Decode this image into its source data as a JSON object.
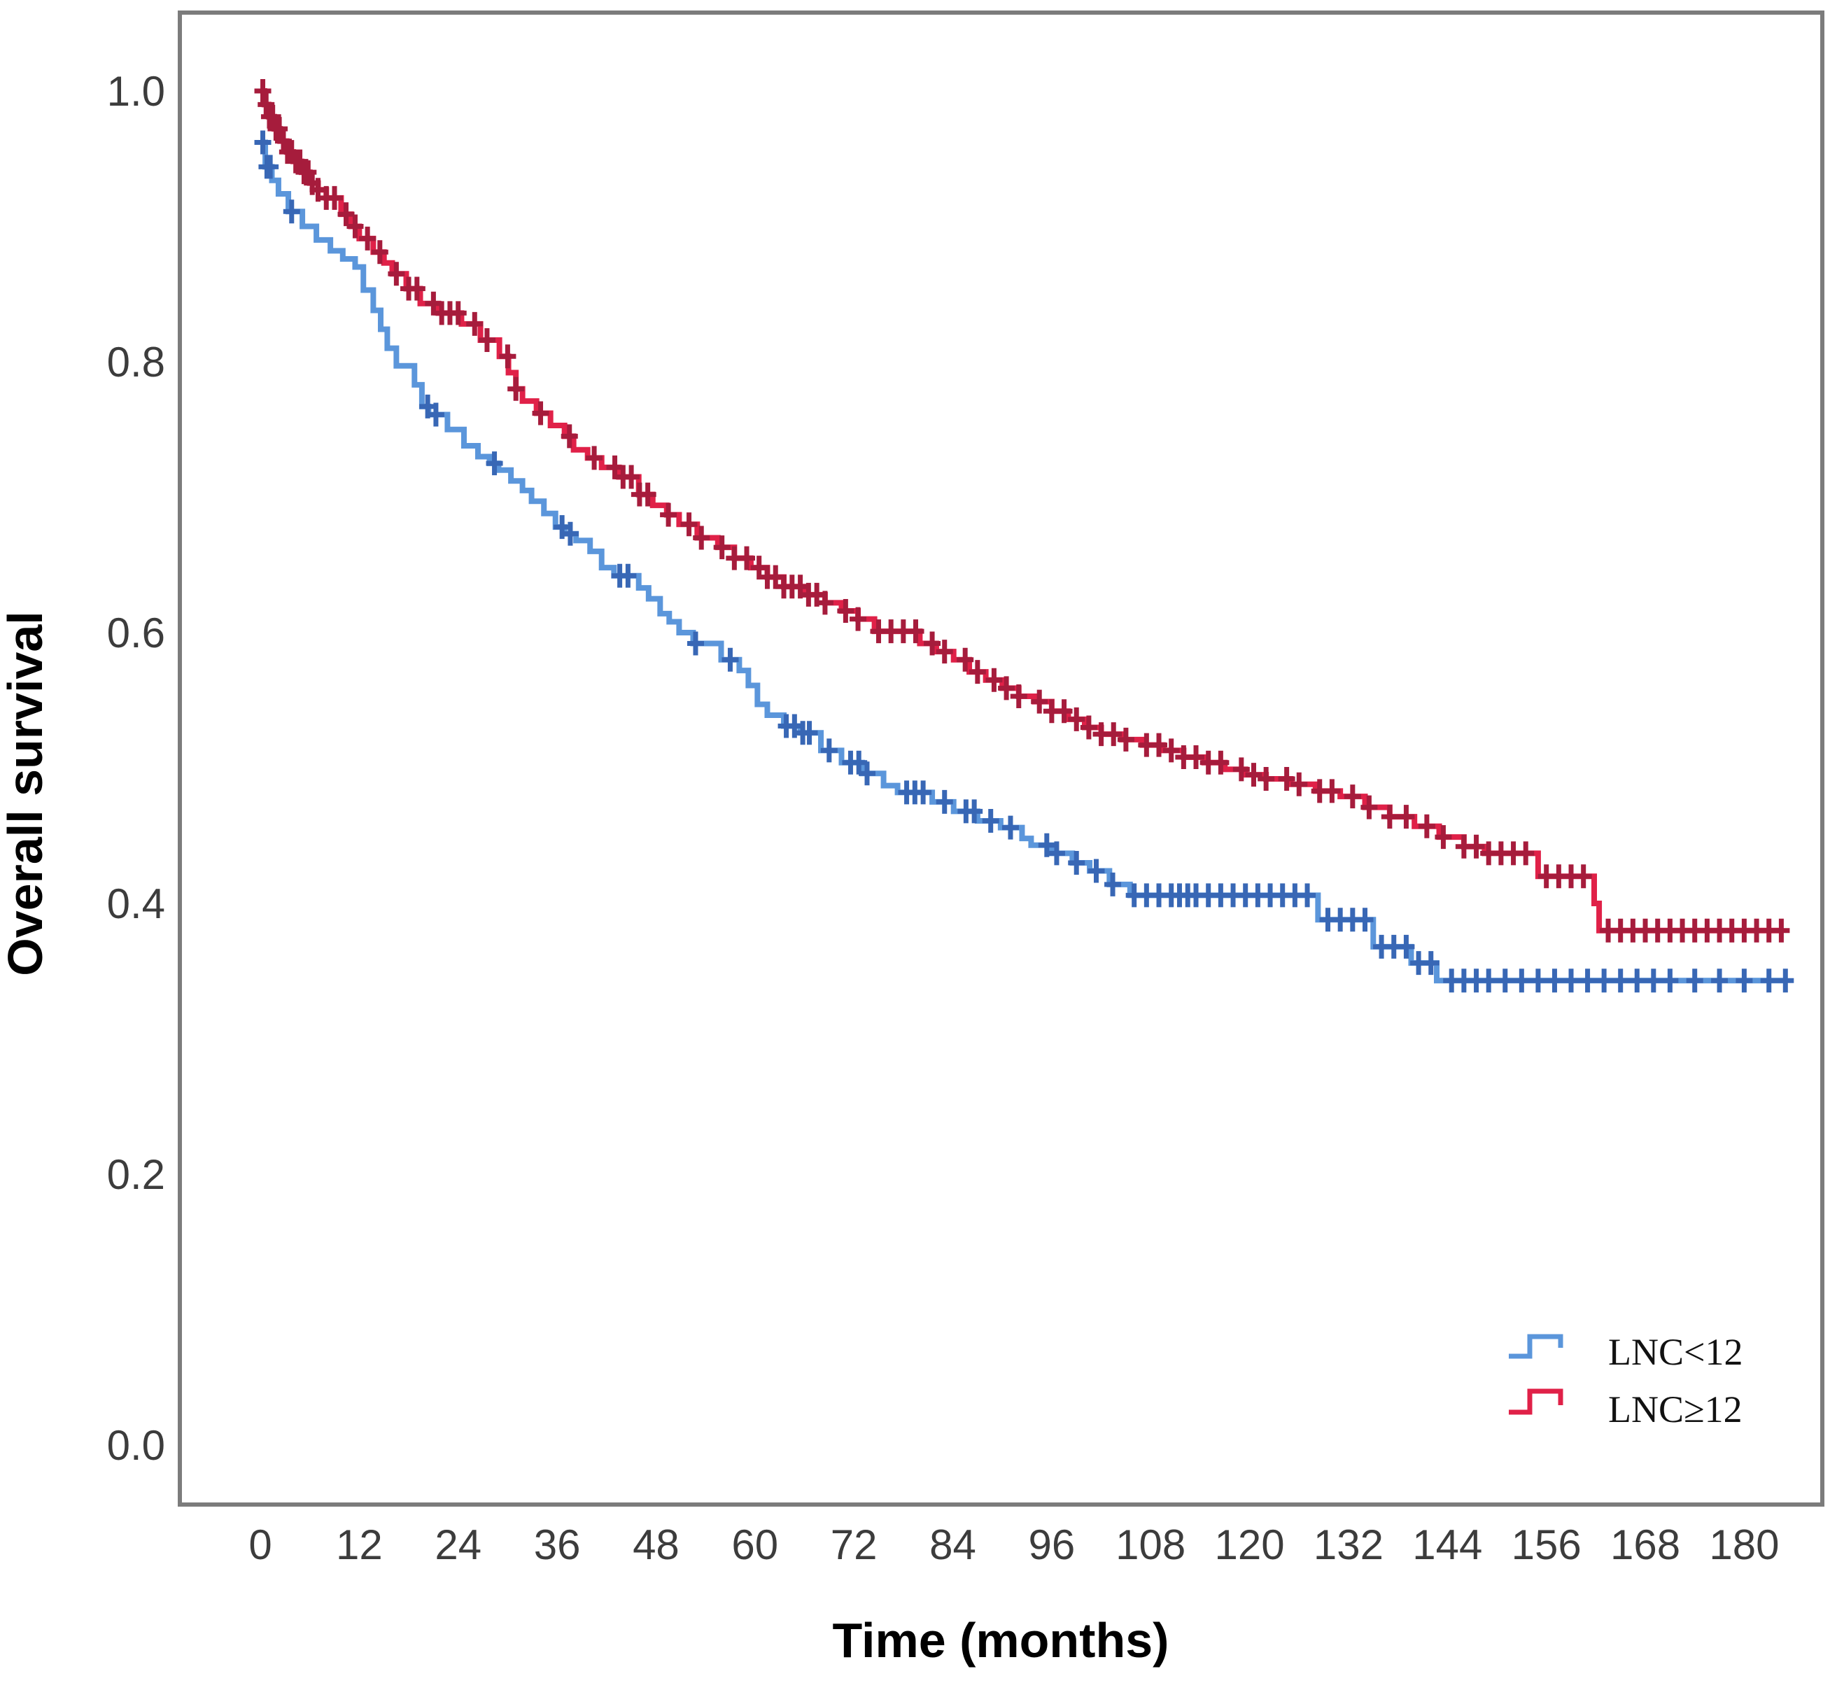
{
  "chart_data": {
    "type": "line",
    "subtype": "kaplan-meier-step",
    "title": "",
    "xlabel": "Time (months)",
    "ylabel": "Overall survival",
    "xlim": [
      0,
      190
    ],
    "ylim": [
      0.0,
      1.0
    ],
    "grid": "off",
    "legend_position": "lower-right",
    "x_ticks": [
      0,
      12,
      24,
      36,
      48,
      60,
      72,
      84,
      96,
      108,
      120,
      132,
      144,
      156,
      168,
      180
    ],
    "y_ticks": [
      {
        "label": "1.0",
        "value": 1.0
      },
      {
        "label": "0.8",
        "value": 0.8
      },
      {
        "label": "0.6",
        "value": 0.6
      },
      {
        "label": "0.4",
        "value": 0.4
      },
      {
        "label": "0.2",
        "value": 0.2
      },
      {
        "label": "0.0",
        "value": 0.0
      }
    ],
    "frame_color": "#7c7c7c",
    "series": [
      {
        "name": "LNC<12",
        "color": "#5b96db",
        "censor_color": "#3867b5",
        "end_time": 185.2,
        "steps": [
          [
            0,
            0.962
          ],
          [
            0.6,
            0.944
          ],
          [
            1.4,
            0.934
          ],
          [
            2.2,
            0.924
          ],
          [
            3.4,
            0.911
          ],
          [
            5.1,
            0.9
          ],
          [
            6.8,
            0.89
          ],
          [
            8.5,
            0.882
          ],
          [
            10,
            0.876
          ],
          [
            11.5,
            0.87
          ],
          [
            12.5,
            0.853
          ],
          [
            13.7,
            0.838
          ],
          [
            14.6,
            0.824
          ],
          [
            15.4,
            0.81
          ],
          [
            16.5,
            0.797
          ],
          [
            18.7,
            0.783
          ],
          [
            19.6,
            0.767
          ],
          [
            20.4,
            0.761
          ],
          [
            22.7,
            0.75
          ],
          [
            24.7,
            0.738
          ],
          [
            26.4,
            0.73
          ],
          [
            27.8,
            0.725
          ],
          [
            28.9,
            0.72
          ],
          [
            30.4,
            0.712
          ],
          [
            31.8,
            0.705
          ],
          [
            32.9,
            0.697
          ],
          [
            34.4,
            0.688
          ],
          [
            35.8,
            0.678
          ],
          [
            36.9,
            0.673
          ],
          [
            38.3,
            0.668
          ],
          [
            40,
            0.66
          ],
          [
            41.4,
            0.648
          ],
          [
            42.9,
            0.642
          ],
          [
            45.9,
            0.633
          ],
          [
            47.1,
            0.625
          ],
          [
            48.5,
            0.614
          ],
          [
            49.6,
            0.608
          ],
          [
            50.8,
            0.6
          ],
          [
            52.5,
            0.592
          ],
          [
            55.9,
            0.58
          ],
          [
            58.1,
            0.572
          ],
          [
            59.2,
            0.561
          ],
          [
            60.3,
            0.547
          ],
          [
            61.5,
            0.539
          ],
          [
            63.5,
            0.531
          ],
          [
            65.5,
            0.526
          ],
          [
            68,
            0.513
          ],
          [
            70.5,
            0.504
          ],
          [
            73,
            0.496
          ],
          [
            75.6,
            0.487
          ],
          [
            77.3,
            0.482
          ],
          [
            81.5,
            0.475
          ],
          [
            84.1,
            0.468
          ],
          [
            87,
            0.461
          ],
          [
            89.8,
            0.456
          ],
          [
            92.4,
            0.448
          ],
          [
            93.5,
            0.443
          ],
          [
            96,
            0.437
          ],
          [
            98.5,
            0.43
          ],
          [
            100.6,
            0.424
          ],
          [
            103,
            0.414
          ],
          [
            105.5,
            0.406
          ],
          [
            128.3,
            0.388
          ],
          [
            135,
            0.368
          ],
          [
            139.6,
            0.356
          ],
          [
            142.7,
            0.343
          ]
        ],
        "censors": [
          0.3,
          0.8,
          1.2,
          3.8,
          20.3,
          21.3,
          28.4,
          36.6,
          37.6,
          43.6,
          44.6,
          52.8,
          57,
          63.8,
          64.8,
          65.8,
          66.6,
          69,
          71.6,
          72.6,
          73.6,
          78.4,
          79.4,
          80.4,
          83,
          85.6,
          86.6,
          88.6,
          91,
          95.4,
          96.6,
          99,
          101.4,
          103.4,
          106,
          107.5,
          109,
          110.5,
          111.5,
          112.5,
          113.5,
          115,
          116.5,
          118,
          119.5,
          121,
          122.5,
          124,
          125.5,
          127,
          129.5,
          131,
          132.5,
          134,
          136,
          137.5,
          139,
          140.5,
          142,
          144.5,
          146,
          147.5,
          149,
          151,
          153,
          155,
          157,
          159,
          161,
          163,
          165,
          167,
          169,
          171,
          174,
          177,
          180,
          183,
          185
        ]
      },
      {
        "name": "LNC≥12",
        "color": "#e02148",
        "censor_color": "#a61c3c",
        "end_time": 184.6,
        "steps": [
          [
            0,
            1.0
          ],
          [
            0.5,
            0.99
          ],
          [
            1,
            0.981
          ],
          [
            1.7,
            0.972
          ],
          [
            2.4,
            0.963
          ],
          [
            3.2,
            0.955
          ],
          [
            4,
            0.948
          ],
          [
            5,
            0.94
          ],
          [
            6,
            0.932
          ],
          [
            7,
            0.927
          ],
          [
            8,
            0.921
          ],
          [
            9.8,
            0.909
          ],
          [
            11,
            0.9
          ],
          [
            12,
            0.891
          ],
          [
            13.7,
            0.881
          ],
          [
            15,
            0.873
          ],
          [
            16,
            0.865
          ],
          [
            17.7,
            0.854
          ],
          [
            19.4,
            0.843
          ],
          [
            21.6,
            0.836
          ],
          [
            24.4,
            0.828
          ],
          [
            26.7,
            0.816
          ],
          [
            29,
            0.804
          ],
          [
            30.1,
            0.792
          ],
          [
            31,
            0.78
          ],
          [
            31.8,
            0.771
          ],
          [
            33.5,
            0.762
          ],
          [
            35.2,
            0.753
          ],
          [
            36.9,
            0.745
          ],
          [
            38,
            0.735
          ],
          [
            39.7,
            0.729
          ],
          [
            41.4,
            0.722
          ],
          [
            43.5,
            0.715
          ],
          [
            45.9,
            0.702
          ],
          [
            47.6,
            0.694
          ],
          [
            49.3,
            0.687
          ],
          [
            50.8,
            0.68
          ],
          [
            53,
            0.67
          ],
          [
            55.5,
            0.663
          ],
          [
            57.5,
            0.655
          ],
          [
            59.5,
            0.648
          ],
          [
            61.5,
            0.641
          ],
          [
            63.5,
            0.634
          ],
          [
            66,
            0.628
          ],
          [
            68.5,
            0.622
          ],
          [
            70.5,
            0.616
          ],
          [
            72.5,
            0.61
          ],
          [
            74.5,
            0.601
          ],
          [
            80,
            0.592
          ],
          [
            82,
            0.586
          ],
          [
            84.1,
            0.58
          ],
          [
            86,
            0.571
          ],
          [
            88,
            0.565
          ],
          [
            90,
            0.559
          ],
          [
            92,
            0.553
          ],
          [
            93.9,
            0.549
          ],
          [
            96,
            0.542
          ],
          [
            98,
            0.536
          ],
          [
            100,
            0.53
          ],
          [
            102,
            0.525
          ],
          [
            104.5,
            0.521
          ],
          [
            107,
            0.517
          ],
          [
            109.5,
            0.513
          ],
          [
            112,
            0.508
          ],
          [
            114.5,
            0.504
          ],
          [
            117,
            0.499
          ],
          [
            119.5,
            0.495
          ],
          [
            122,
            0.492
          ],
          [
            125,
            0.488
          ],
          [
            128,
            0.483
          ],
          [
            131,
            0.479
          ],
          [
            134,
            0.471
          ],
          [
            137,
            0.464
          ],
          [
            140,
            0.457
          ],
          [
            143,
            0.449
          ],
          [
            146,
            0.442
          ],
          [
            148.5,
            0.437
          ],
          [
            155,
            0.42
          ],
          [
            161.8,
            0.4
          ],
          [
            162.4,
            0.38
          ]
        ],
        "censors": [
          0.3,
          0.7,
          1.1,
          1.5,
          1.9,
          2.3,
          2.8,
          3.3,
          3.8,
          4.3,
          4.8,
          5.3,
          5.8,
          6.3,
          7,
          8,
          9,
          10.4,
          11.5,
          13,
          14.5,
          16.5,
          18,
          19,
          21,
          22,
          23,
          24,
          26,
          27.5,
          30,
          31,
          34,
          37.5,
          40.5,
          43,
          44,
          45,
          46,
          47,
          49.5,
          52,
          53.5,
          56,
          57.5,
          59,
          60.5,
          61.5,
          62.5,
          63.5,
          64.5,
          65.5,
          66.5,
          67.5,
          68.5,
          71,
          72.5,
          75,
          76.5,
          78,
          79.5,
          81.5,
          83,
          85.5,
          87,
          89,
          90.5,
          92,
          94.5,
          96,
          97.5,
          99,
          100.5,
          102,
          103.5,
          105,
          107.5,
          109,
          110.5,
          112,
          113.5,
          115,
          116.5,
          119,
          120.5,
          122,
          124.5,
          126,
          128.5,
          130,
          132.5,
          134.5,
          137,
          139,
          141.5,
          143.5,
          146,
          147.5,
          149,
          150.5,
          152,
          153.5,
          156,
          157.5,
          159,
          160.5,
          163.5,
          165,
          166.5,
          168,
          169.5,
          171,
          172.5,
          174,
          175.5,
          177,
          178.5,
          180,
          181.5,
          183,
          184.5
        ]
      }
    ]
  }
}
